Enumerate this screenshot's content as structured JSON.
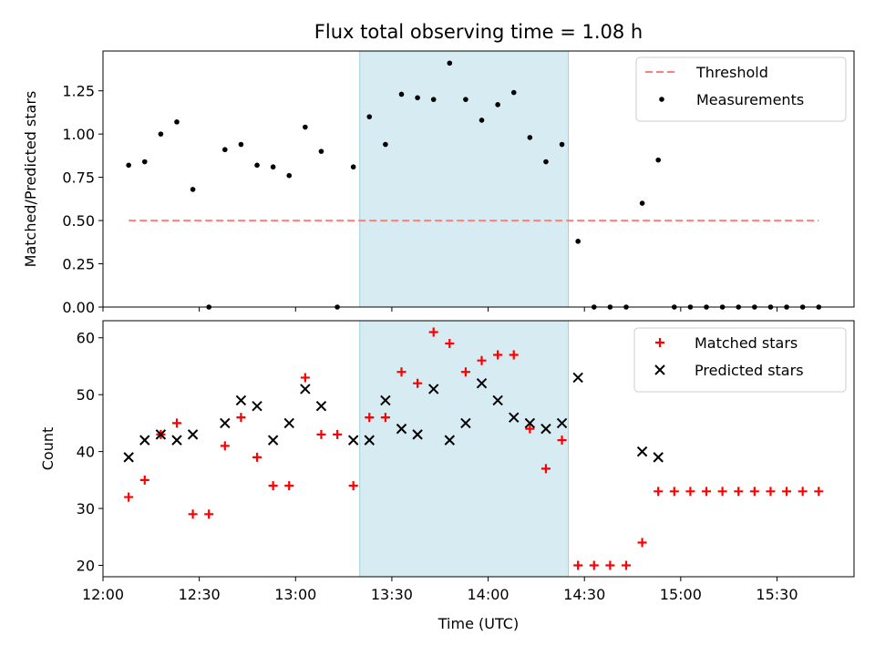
{
  "chart_data": [
    {
      "type": "scatter",
      "title": "Flux total observing time = 1.08 h",
      "xlabel": "",
      "ylabel": "Matched/Predicted stars",
      "xlim": [
        "12:00",
        "15:54"
      ],
      "ylim": [
        0,
        1.48
      ],
      "yticks": [
        "0.00",
        "0.25",
        "0.50",
        "0.75",
        "1.00",
        "1.25"
      ],
      "shaded_interval": [
        "13:20",
        "14:25"
      ],
      "legend_position": "top-right",
      "series": [
        {
          "name": "Threshold",
          "kind": "dashed-line",
          "color": "#ff7f7f",
          "x": [
            "12:08",
            "15:43"
          ],
          "y": [
            0.5,
            0.5
          ]
        },
        {
          "name": "Measurements",
          "kind": "dots",
          "color": "#000000",
          "x": [
            "12:08",
            "12:13",
            "12:18",
            "12:23",
            "12:28",
            "12:33",
            "12:38",
            "12:43",
            "12:48",
            "12:53",
            "12:58",
            "13:03",
            "13:08",
            "13:13",
            "13:18",
            "13:23",
            "13:28",
            "13:33",
            "13:38",
            "13:43",
            "13:48",
            "13:53",
            "13:58",
            "14:03",
            "14:08",
            "14:13",
            "14:18",
            "14:23",
            "14:28",
            "14:33",
            "14:38",
            "14:43",
            "14:48",
            "14:53",
            "14:58",
            "15:03",
            "15:08",
            "15:13",
            "15:18",
            "15:23",
            "15:28",
            "15:33",
            "15:38",
            "15:43"
          ],
          "y": [
            0.82,
            0.84,
            1.0,
            1.07,
            0.68,
            0.0,
            0.91,
            0.94,
            0.82,
            0.81,
            0.76,
            1.04,
            0.9,
            0.0,
            0.81,
            1.1,
            0.94,
            1.23,
            1.21,
            1.2,
            1.41,
            1.2,
            1.08,
            1.17,
            1.24,
            0.98,
            0.84,
            0.94,
            0.38,
            0.0,
            0.0,
            0.0,
            0.6,
            0.85,
            0.0,
            0.0,
            0.0,
            0.0,
            0.0,
            0.0,
            0.0,
            0.0,
            0.0,
            0.0
          ]
        }
      ]
    },
    {
      "type": "scatter",
      "title": "",
      "xlabel": "Time (UTC)",
      "ylabel": "Count",
      "xlim": [
        "12:00",
        "15:54"
      ],
      "ylim": [
        18,
        63
      ],
      "xticks": [
        "12:00",
        "12:30",
        "13:00",
        "13:30",
        "14:00",
        "14:30",
        "15:00",
        "15:30"
      ],
      "yticks": [
        "20",
        "30",
        "40",
        "50",
        "60"
      ],
      "shaded_interval": [
        "13:20",
        "14:25"
      ],
      "legend_position": "top-right",
      "series": [
        {
          "name": "Matched stars",
          "marker": "plus",
          "color": "#ff0000",
          "x": [
            "12:08",
            "12:13",
            "12:18",
            "12:23",
            "12:28",
            "12:33",
            "12:38",
            "12:43",
            "12:48",
            "12:53",
            "12:58",
            "13:03",
            "13:08",
            "13:13",
            "13:18",
            "13:23",
            "13:28",
            "13:33",
            "13:38",
            "13:43",
            "13:48",
            "13:53",
            "13:58",
            "14:03",
            "14:08",
            "14:13",
            "14:18",
            "14:23",
            "14:28",
            "14:33",
            "14:38",
            "14:43",
            "14:48",
            "14:53",
            "14:58",
            "15:03",
            "15:08",
            "15:13",
            "15:18",
            "15:23",
            "15:28",
            "15:33",
            "15:38",
            "15:43"
          ],
          "y": [
            32,
            35,
            43,
            45,
            29,
            29,
            41,
            46,
            39,
            34,
            34,
            53,
            43,
            43,
            34,
            46,
            46,
            54,
            52,
            61,
            59,
            54,
            56,
            57,
            57,
            44,
            37,
            42,
            20,
            20,
            20,
            20,
            24,
            33,
            33,
            33,
            33,
            33,
            33,
            33,
            33,
            33,
            33,
            33
          ]
        },
        {
          "name": "Predicted stars",
          "marker": "x",
          "color": "#000000",
          "x": [
            "12:08",
            "12:13",
            "12:18",
            "12:23",
            "12:28",
            "12:38",
            "12:43",
            "12:48",
            "12:53",
            "12:58",
            "13:03",
            "13:08",
            "13:18",
            "13:23",
            "13:28",
            "13:33",
            "13:38",
            "13:43",
            "13:48",
            "13:53",
            "13:58",
            "14:03",
            "14:08",
            "14:13",
            "14:18",
            "14:23",
            "14:28",
            "14:48",
            "14:53"
          ],
          "y": [
            39,
            42,
            43,
            42,
            43,
            45,
            49,
            48,
            42,
            45,
            51,
            48,
            42,
            42,
            49,
            44,
            43,
            51,
            42,
            45,
            52,
            49,
            46,
            45,
            44,
            45,
            53,
            40,
            39
          ]
        }
      ]
    }
  ]
}
